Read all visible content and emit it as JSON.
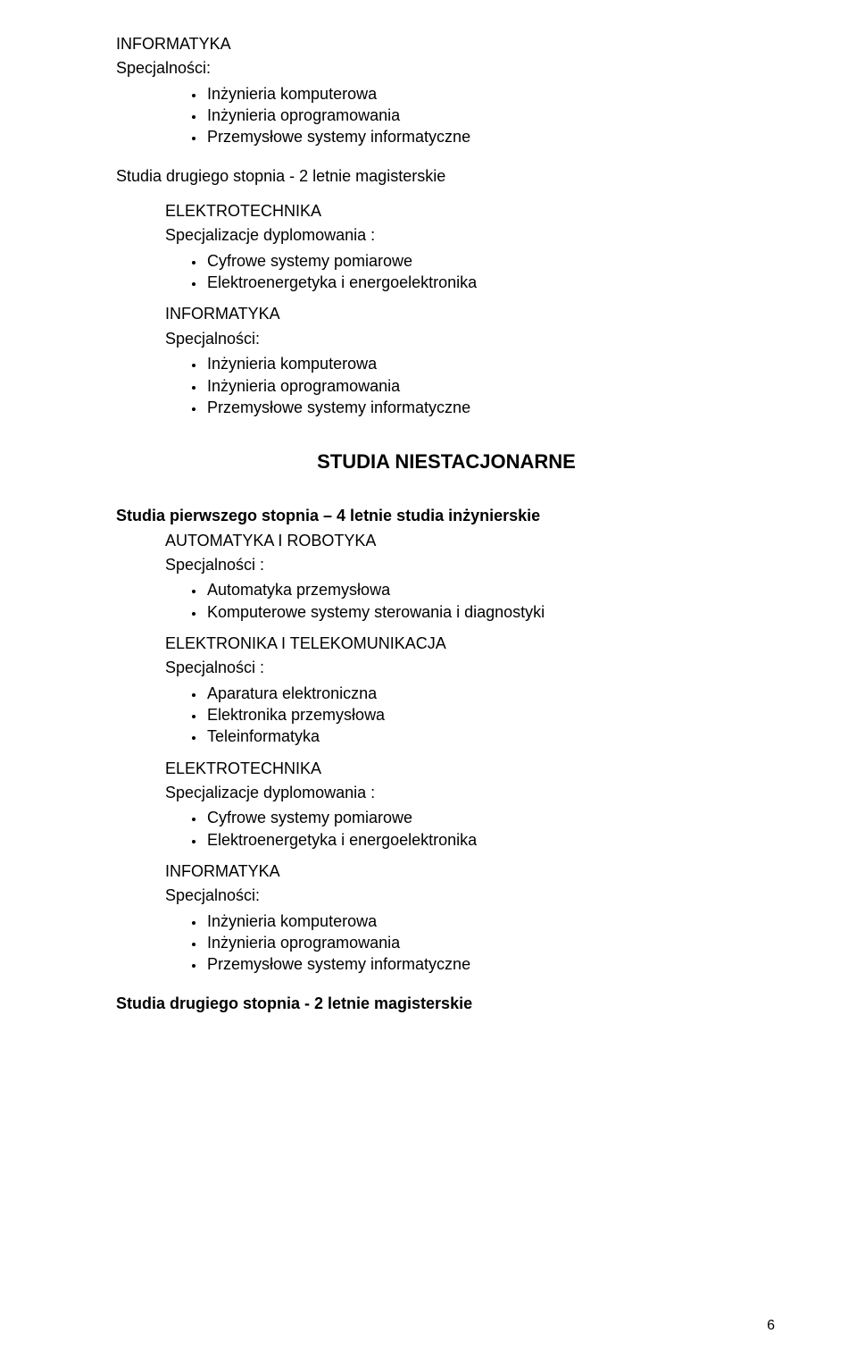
{
  "sec1": {
    "h1": "INFORMATYKA",
    "h2": "Specjalności:",
    "items": [
      "Inżynieria komputerowa",
      "Inżynieria oprogramowania",
      "Przemysłowe systemy informatyczne"
    ]
  },
  "sec2": {
    "title": "Studia drugiego stopnia - 2 letnie magisterskie",
    "block1": {
      "h1": "ELEKTROTECHNIKA",
      "h2": "Specjalizacje dyplomowania :",
      "items": [
        "Cyfrowe systemy pomiarowe",
        "Elektroenergetyka i energoelektronika"
      ]
    },
    "block2": {
      "h1": "INFORMATYKA",
      "h2": "Specjalności:",
      "items": [
        "Inżynieria komputerowa",
        "Inżynieria oprogramowania",
        "Przemysłowe systemy informatyczne"
      ]
    }
  },
  "mainTitle": "STUDIA NIESTACJONARNE",
  "sec3": {
    "title": "Studia pierwszego stopnia – 4 letnie studia inżynierskie",
    "block1": {
      "h1": "AUTOMATYKA I ROBOTYKA",
      "h2": "Specjalności :",
      "items": [
        "Automatyka przemysłowa",
        "Komputerowe systemy sterowania i diagnostyki"
      ]
    },
    "block2": {
      "h1": "ELEKTRONIKA I TELEKOMUNIKACJA",
      "h2": "Specjalności :",
      "items": [
        "Aparatura elektroniczna",
        "Elektronika przemysłowa",
        "Teleinformatyka"
      ]
    },
    "block3": {
      "h1": "ELEKTROTECHNIKA",
      "h2": "Specjalizacje dyplomowania :",
      "items": [
        "Cyfrowe systemy pomiarowe",
        "Elektroenergetyka i energoelektronika"
      ]
    },
    "block4": {
      "h1": "INFORMATYKA",
      "h2": "Specjalności:",
      "items": [
        "Inżynieria komputerowa",
        "Inżynieria oprogramowania",
        "Przemysłowe systemy informatyczne"
      ]
    }
  },
  "sec4": {
    "title": "Studia drugiego stopnia - 2 letnie magisterskie"
  },
  "pageNumber": "6"
}
